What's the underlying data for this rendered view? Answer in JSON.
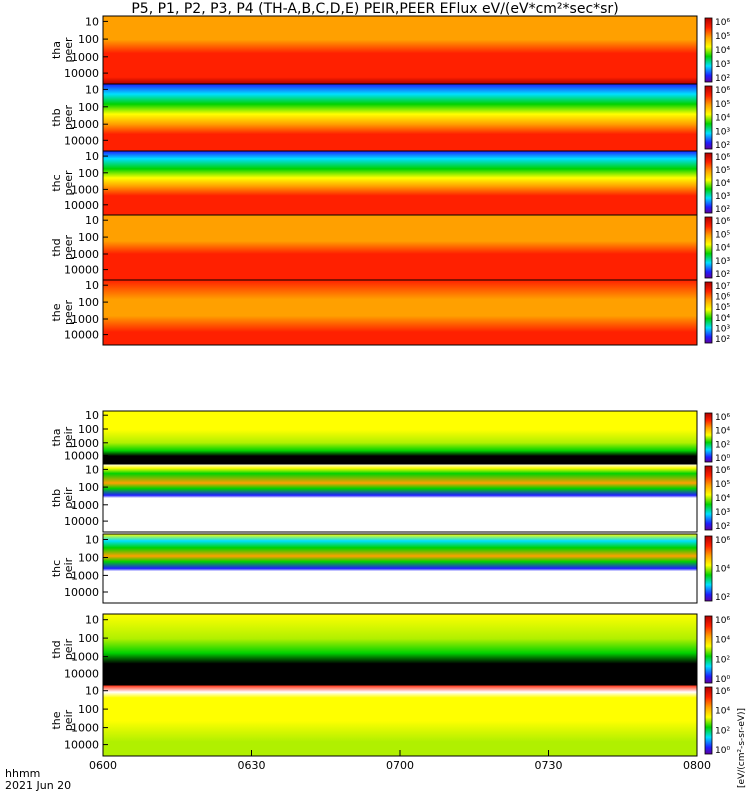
{
  "chart_data": {
    "type": "heatmap",
    "title": "P5, P1, P2, P3, P4 (TH-A,B,C,D,E) PEIR,PEER EFlux eV/(eV*cm²*sec*sr)",
    "x_ticks": [
      "0600",
      "0630",
      "0700",
      "0730",
      "0800"
    ],
    "x_label_line1": "hhmm",
    "x_label_line2": "2021 Jun 20",
    "y_scale": "log",
    "colorbar_unit_label": "[eV/(cm²-s-sr-eV)]",
    "colors": {
      "black": "#000000",
      "blue": "#1e1eff",
      "cyan": "#00e0ff",
      "green": "#00d200",
      "lime": "#b0f000",
      "yellow": "#ffff00",
      "orange": "#ffa000",
      "red": "#ff2000",
      "darkred": "#b00000"
    },
    "panels": [
      {
        "name_line1": "tha",
        "name_line2": "peer",
        "y_ticks": [
          "10000",
          "1000",
          "100",
          "10"
        ],
        "cb_ticks": [
          "10⁶",
          "10⁵",
          "10⁴",
          "10³",
          "10²"
        ],
        "cb_range": [
          2,
          6
        ]
      },
      {
        "name_line1": "thb",
        "name_line2": "peer",
        "y_ticks": [
          "10000",
          "1000",
          "100",
          "10"
        ],
        "cb_ticks": [
          "10⁶",
          "10⁵",
          "10⁴",
          "10³",
          "10²"
        ],
        "cb_range": [
          2,
          6
        ]
      },
      {
        "name_line1": "thc",
        "name_line2": "peer",
        "y_ticks": [
          "10000",
          "1000",
          "100",
          "10"
        ],
        "cb_ticks": [
          "10⁶",
          "10⁵",
          "10⁴",
          "10³",
          "10²"
        ],
        "cb_range": [
          2,
          6
        ]
      },
      {
        "name_line1": "thd",
        "name_line2": "peer",
        "y_ticks": [
          "10000",
          "1000",
          "100",
          "10"
        ],
        "cb_ticks": [
          "10⁶",
          "10⁵",
          "10⁴",
          "10³",
          "10²"
        ],
        "cb_range": [
          2,
          6
        ]
      },
      {
        "name_line1": "the",
        "name_line2": "peer",
        "y_ticks": [
          "10000",
          "1000",
          "100",
          "10"
        ],
        "cb_ticks": [
          "10⁷",
          "10⁶",
          "10⁵",
          "10⁴",
          "10³",
          "10²"
        ],
        "cb_range": [
          2,
          7
        ]
      },
      {
        "name_line1": "tha",
        "name_line2": "peir",
        "y_ticks": [
          "10000",
          "1000",
          "100",
          "10"
        ],
        "cb_ticks": [
          "10⁶",
          "10⁴",
          "10²",
          "10⁰"
        ],
        "cb_range": [
          0,
          7
        ]
      },
      {
        "name_line1": "thb",
        "name_line2": "peir",
        "y_ticks": [
          "10000",
          "1000",
          "100",
          "10"
        ],
        "cb_ticks": [
          "10⁶",
          "10⁵",
          "10⁴",
          "10³",
          "10²"
        ],
        "cb_range": [
          2,
          6
        ]
      },
      {
        "name_line1": "thc",
        "name_line2": "peir",
        "y_ticks": [
          "10000",
          "1000",
          "100",
          "10"
        ],
        "cb_ticks": [
          "10⁶",
          "10⁴",
          "10²"
        ],
        "cb_range": [
          1,
          7
        ]
      },
      {
        "name_line1": "thd",
        "name_line2": "peir",
        "y_ticks": [
          "10000",
          "1000",
          "100",
          "10"
        ],
        "cb_ticks": [
          "10⁶",
          "10⁴",
          "10²",
          "10⁰"
        ],
        "cb_range": [
          0,
          7
        ]
      },
      {
        "name_line1": "the",
        "name_line2": "peir",
        "y_ticks": [
          "10000",
          "1000",
          "100",
          "10"
        ],
        "cb_ticks": [
          "10⁶",
          "10⁴",
          "10²",
          "10⁰"
        ],
        "cb_range": [
          0,
          7
        ]
      }
    ]
  }
}
